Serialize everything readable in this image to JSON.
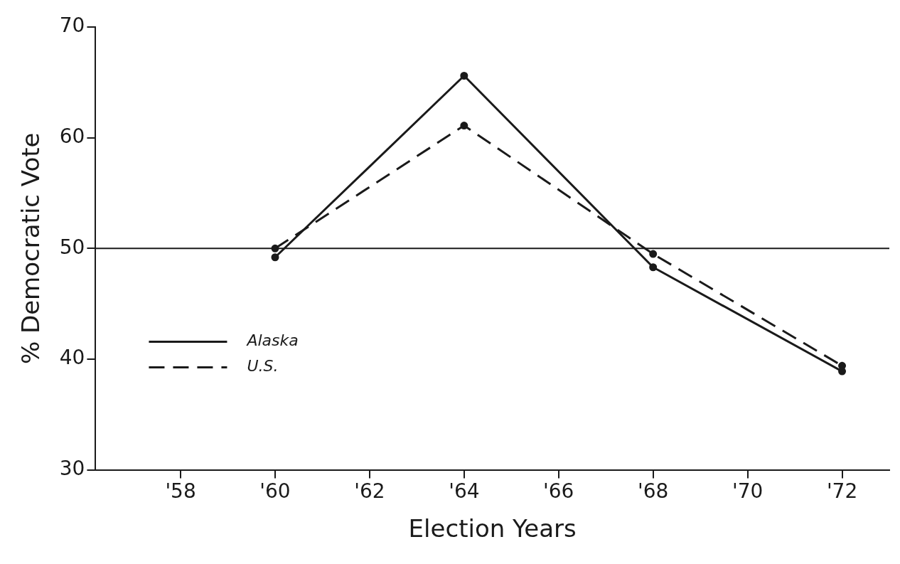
{
  "chart_data": {
    "type": "line",
    "xlabel": "Election Years",
    "ylabel": "% Democratic Vote",
    "series": [
      {
        "name": "Alaska",
        "color": "#1a1a1a",
        "x": [
          1960,
          1964,
          1968,
          1972
        ],
        "values": [
          49.2,
          65.6,
          48.3,
          38.9
        ],
        "line_style": "solid"
      },
      {
        "name": "U.S.",
        "color": "#1a1a1a",
        "x": [
          1960,
          1964,
          1968,
          1972
        ],
        "values": [
          50.0,
          61.1,
          49.5,
          39.4
        ],
        "line_style": "dashed"
      }
    ],
    "xlim": [
      1956.2,
      1973
    ],
    "xticks": [
      {
        "value": 1958,
        "label": "'58"
      },
      {
        "value": 1960,
        "label": "'60"
      },
      {
        "value": 1962,
        "label": "'62"
      },
      {
        "value": 1964,
        "label": "'64"
      },
      {
        "value": 1966,
        "label": "'66"
      },
      {
        "value": 1968,
        "label": "'68"
      },
      {
        "value": 1970,
        "label": "'70"
      },
      {
        "value": 1972,
        "label": "'72"
      }
    ],
    "ylim": [
      30,
      70
    ],
    "yticks": [
      30,
      40,
      50,
      60,
      70
    ],
    "ref_lines": [
      {
        "axis": "y",
        "value": 50,
        "color": "#1a1a1a",
        "line_style": "solid"
      }
    ],
    "grid": false,
    "legend": "bottom left",
    "marker": "circle"
  }
}
